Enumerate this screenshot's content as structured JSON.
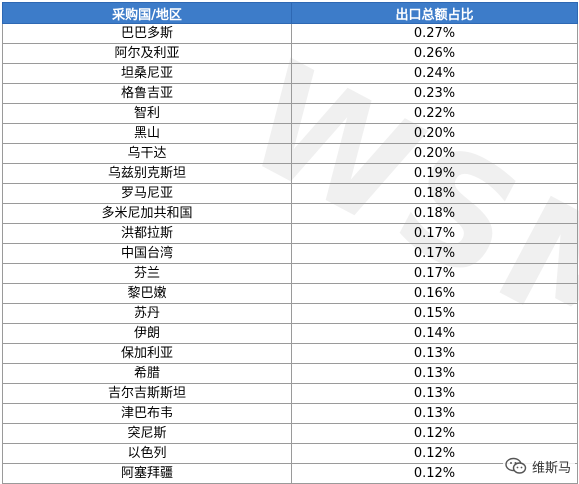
{
  "table": {
    "headers": [
      "采购国/地区",
      "出口总额占比"
    ],
    "rows": [
      [
        "巴巴多斯",
        "0.27%"
      ],
      [
        "阿尔及利亚",
        "0.26%"
      ],
      [
        "坦桑尼亚",
        "0.24%"
      ],
      [
        "格鲁吉亚",
        "0.23%"
      ],
      [
        "智利",
        "0.22%"
      ],
      [
        "黑山",
        "0.20%"
      ],
      [
        "乌干达",
        "0.20%"
      ],
      [
        "乌兹别克斯坦",
        "0.19%"
      ],
      [
        "罗马尼亚",
        "0.18%"
      ],
      [
        "多米尼加共和国",
        "0.18%"
      ],
      [
        "洪都拉斯",
        "0.17%"
      ],
      [
        "中国台湾",
        "0.17%"
      ],
      [
        "芬兰",
        "0.17%"
      ],
      [
        "黎巴嫩",
        "0.16%"
      ],
      [
        "苏丹",
        "0.15%"
      ],
      [
        "伊朗",
        "0.14%"
      ],
      [
        "保加利亚",
        "0.13%"
      ],
      [
        "希腊",
        "0.13%"
      ],
      [
        "吉尔吉斯斯坦",
        "0.13%"
      ],
      [
        "津巴布韦",
        "0.13%"
      ],
      [
        "突尼斯",
        "0.12%"
      ],
      [
        "以色列",
        "0.12%"
      ],
      [
        "阿塞拜疆",
        "0.12%"
      ]
    ]
  },
  "watermark": {
    "text": "WSM"
  },
  "badge": {
    "label": "维斯马",
    "icon": "wechat-icon"
  },
  "colors": {
    "header_bg": "#3d7cc9",
    "header_text": "#ffffff",
    "grid": "#9a9a9a"
  }
}
